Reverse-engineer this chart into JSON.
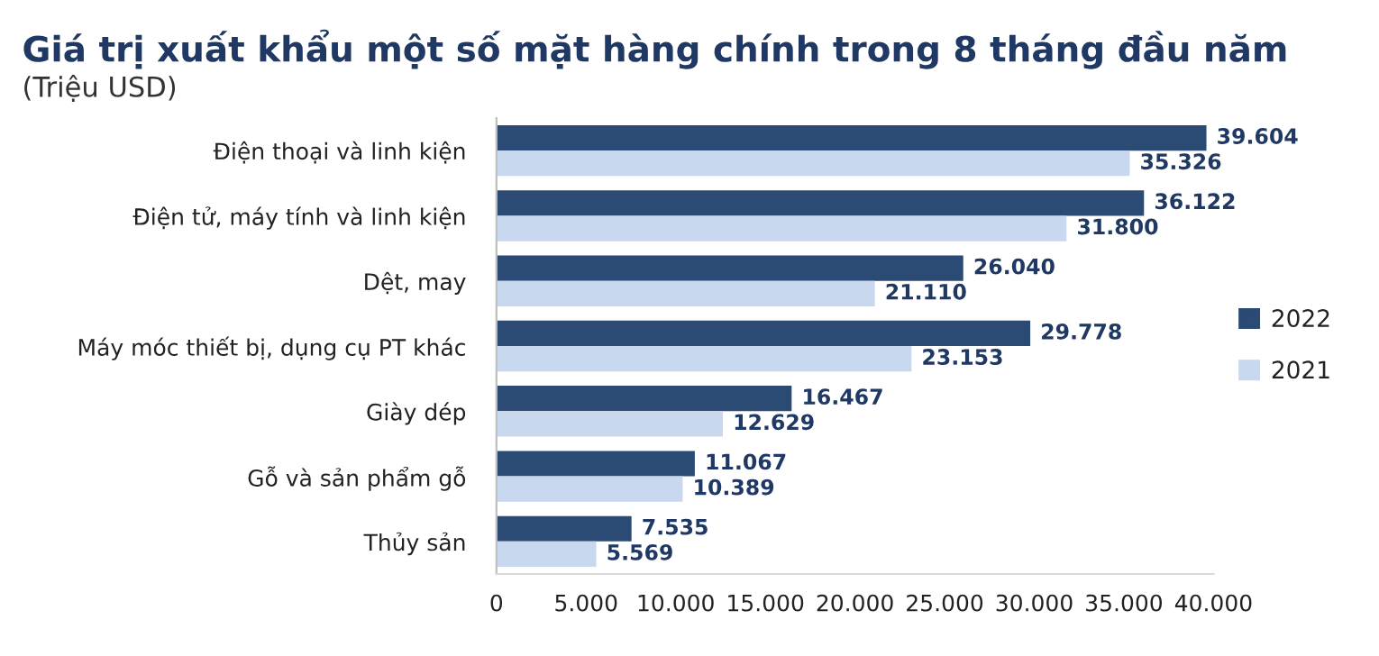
{
  "chart_data": {
    "type": "bar",
    "orientation": "horizontal",
    "title": "Giá trị xuất khẩu một số mặt hàng chính trong 8 tháng đầu năm",
    "subtitle": "(Triệu USD)",
    "categories": [
      "Điện thoại và linh kiện",
      "Điện tử, máy tính và linh kiện",
      "Dệt, may",
      "Máy móc thiết bị, dụng cụ PT khác",
      "Giày dép",
      "Gỗ và sản phẩm gỗ",
      "Thủy sản"
    ],
    "series": [
      {
        "name": "2022",
        "color": "#2b4a74",
        "values": [
          39604,
          36122,
          26040,
          29778,
          16467,
          11067,
          7535
        ],
        "value_labels": [
          "39.604",
          "36.122",
          "26.040",
          "29.778",
          "16.467",
          "11.067",
          "7.535"
        ]
      },
      {
        "name": "2021",
        "color": "#c8d8ee",
        "values": [
          35326,
          31800,
          21110,
          23153,
          12629,
          10389,
          5569
        ],
        "value_labels": [
          "35.326",
          "31.800",
          "21.110",
          "23.153",
          "12.629",
          "10.389",
          "5.569"
        ]
      }
    ],
    "xlim": [
      0,
      40000
    ],
    "xticks": [
      0,
      {
        "value": 5000,
        "label": "5.000"
      },
      {
        "value": 10000,
        "label": "10.000"
      },
      {
        "value": 15000,
        "label": "15.000"
      },
      {
        "value": 20000,
        "label": "20.000"
      },
      {
        "value": 25000,
        "label": "25.000"
      },
      {
        "value": 30000,
        "label": "30.000"
      },
      {
        "value": 35000,
        "label": "35.000"
      },
      {
        "value": 40000,
        "label": "40.000"
      }
    ],
    "legend": "right",
    "grid": false
  }
}
